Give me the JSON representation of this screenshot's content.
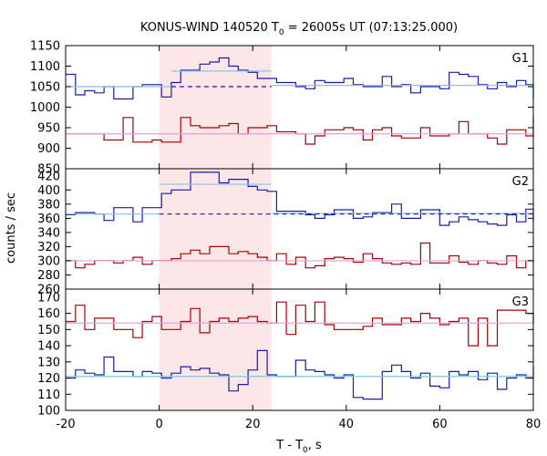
{
  "chart_data": {
    "type": "line",
    "title": "KONUS-WIND 140520 T",
    "title_sub": "0",
    "title_rest": " = 26005s UT (07:13:25.000)",
    "xlabel": "T - T",
    "xlabel_sub": "0",
    "xlabel_rest": ", s",
    "ylabel": "counts / sec",
    "xlim": [
      -20,
      80
    ],
    "x_ticks": [
      "-20",
      "0",
      "20",
      "40",
      "60",
      "80"
    ],
    "highlight_interval": [
      0,
      24
    ],
    "colors": {
      "blue": "#1a1aa6",
      "red": "#a60000",
      "cyan": "#7ec8e3",
      "pink": "#e8a0d8",
      "dashed": "#1a1aa6",
      "shade": "#fde6e8"
    },
    "panels": [
      {
        "name": "G1",
        "ylim": [
          850,
          1150
        ],
        "y_ticks": [
          "850",
          "900",
          "950",
          "1000",
          "1050",
          "1100",
          "1150"
        ],
        "step_x": [
          -20,
          -17.9,
          -15.9,
          -13.8,
          -11.8,
          -9.7,
          -7.7,
          -5.6,
          -3.6,
          -1.5,
          0.5,
          2.6,
          4.6,
          6.7,
          8.7,
          10.8,
          12.8,
          14.9,
          16.9,
          19.0,
          21.0,
          23.1,
          25.1,
          27.2,
          29.2,
          31.3,
          33.3,
          35.4,
          37.4,
          39.5,
          41.5,
          43.6,
          45.6,
          47.7,
          49.7,
          51.8,
          53.8,
          55.9,
          57.9,
          60.0,
          62.0,
          64.1,
          66.1,
          68.2,
          70.2,
          72.3,
          74.3,
          76.4,
          78.4,
          80.0
        ],
        "series": [
          {
            "color": "blue",
            "values": [
              1080,
              1030,
              1040,
              1035,
              1050,
              1020,
              1020,
              1050,
              1055,
              1055,
              1025,
              1060,
              1090,
              1090,
              1105,
              1110,
              1120,
              1100,
              1090,
              1085,
              1070,
              1070,
              1060,
              1060,
              1050,
              1045,
              1065,
              1060,
              1060,
              1070,
              1055,
              1050,
              1050,
              1075,
              1050,
              1055,
              1035,
              1050,
              1050,
              1045,
              1085,
              1080,
              1075,
              1055,
              1045,
              1060,
              1050,
              1065,
              1055,
              1020
            ]
          },
          {
            "color": "red",
            "values": [
              935,
              935,
              935,
              935,
              920,
              920,
              975,
              915,
              915,
              920,
              915,
              915,
              975,
              955,
              950,
              950,
              955,
              960,
              935,
              950,
              950,
              955,
              940,
              940,
              935,
              910,
              930,
              945,
              945,
              950,
              945,
              920,
              945,
              950,
              930,
              925,
              925,
              950,
              930,
              930,
              935,
              965,
              935,
              935,
              925,
              910,
              945,
              945,
              930,
              975
            ]
          },
          {
            "color": "cyan",
            "kind": "fit",
            "segments": [
              [
                -20,
                0,
                1050
              ],
              [
                0,
                2.6,
                1050
              ],
              [
                2.6,
                24,
                1088
              ],
              [
                24,
                80,
                1053
              ]
            ]
          },
          {
            "color": "dashed",
            "kind": "background",
            "segments": [
              [
                2.6,
                24,
                1050
              ]
            ]
          },
          {
            "color": "pink",
            "kind": "fit",
            "segments": [
              [
                -20,
                80,
                935
              ]
            ]
          }
        ]
      },
      {
        "name": "G2",
        "ylim": [
          260,
          430
        ],
        "y_ticks": [
          "260",
          "280",
          "300",
          "320",
          "340",
          "360",
          "380",
          "400",
          "420"
        ],
        "step_x": [
          -20,
          -17.9,
          -15.9,
          -13.8,
          -11.8,
          -9.7,
          -7.7,
          -5.6,
          -3.6,
          -1.5,
          0.5,
          2.6,
          4.6,
          6.7,
          8.7,
          10.8,
          12.8,
          14.9,
          16.9,
          19.0,
          21.0,
          23.1,
          25.1,
          27.2,
          29.2,
          31.3,
          33.3,
          35.4,
          37.4,
          39.5,
          41.5,
          43.6,
          45.6,
          47.7,
          49.7,
          51.8,
          53.8,
          55.9,
          57.9,
          60.0,
          62.0,
          64.1,
          66.1,
          68.2,
          70.2,
          72.3,
          74.3,
          76.4,
          78.4,
          80.0
        ],
        "series": [
          {
            "color": "blue",
            "values": [
              365,
              368,
              368,
              366,
              357,
              375,
              375,
              355,
              375,
              375,
              395,
              400,
              400,
              425,
              425,
              425,
              410,
              415,
              415,
              405,
              400,
              398,
              370,
              370,
              370,
              365,
              360,
              365,
              372,
              372,
              360,
              362,
              368,
              368,
              380,
              360,
              360,
              372,
              372,
              350,
              355,
              362,
              358,
              355,
              352,
              350,
              365,
              355,
              373,
              355
            ]
          },
          {
            "color": "red",
            "values": [
              300,
              290,
              295,
              300,
              300,
              297,
              300,
              305,
              295,
              300,
              300,
              303,
              310,
              315,
              310,
              320,
              320,
              310,
              313,
              310,
              305,
              300,
              310,
              295,
              305,
              290,
              293,
              303,
              305,
              303,
              298,
              310,
              303,
              297,
              295,
              297,
              295,
              325,
              297,
              297,
              307,
              298,
              295,
              300,
              297,
              295,
              307,
              290,
              300,
              297
            ]
          },
          {
            "color": "cyan",
            "kind": "fit",
            "segments": [
              [
                -20,
                0,
                366
              ],
              [
                0,
                24,
                408
              ],
              [
                24,
                80,
                367
              ]
            ]
          },
          {
            "color": "dashed",
            "kind": "background",
            "segments": [
              [
                0,
                80,
                366
              ]
            ]
          },
          {
            "color": "pink",
            "kind": "fit",
            "segments": [
              [
                -20,
                80,
                300
              ]
            ]
          }
        ]
      },
      {
        "name": "G3",
        "ylim": [
          100,
          175
        ],
        "y_ticks": [
          "100",
          "110",
          "120",
          "130",
          "140",
          "150",
          "160",
          "170"
        ],
        "step_x": [
          -20,
          -17.9,
          -15.9,
          -13.8,
          -11.8,
          -9.7,
          -7.7,
          -5.6,
          -3.6,
          -1.5,
          0.5,
          2.6,
          4.6,
          6.7,
          8.7,
          10.8,
          12.8,
          14.9,
          16.9,
          19.0,
          21.0,
          23.1,
          25.1,
          27.2,
          29.2,
          31.3,
          33.3,
          35.4,
          37.4,
          39.5,
          41.5,
          43.6,
          45.6,
          47.7,
          49.7,
          51.8,
          53.8,
          55.9,
          57.9,
          60.0,
          62.0,
          64.1,
          66.1,
          68.2,
          70.2,
          72.3,
          74.3,
          76.4,
          78.4,
          80.0
        ],
        "series": [
          {
            "color": "red",
            "values": [
              155,
              165,
              150,
              157,
              157,
              150,
              150,
              145,
              155,
              158,
              150,
              150,
              155,
              163,
              148,
              155,
              157,
              155,
              157,
              158,
              155,
              154,
              167,
              147,
              165,
              155,
              167,
              153,
              150,
              150,
              150,
              152,
              157,
              153,
              153,
              157,
              155,
              160,
              157,
              153,
              155,
              157,
              140,
              157,
              140,
              162,
              162,
              162,
              160,
              154
            ]
          },
          {
            "color": "blue",
            "values": [
              120,
              125,
              123,
              122,
              133,
              124,
              124,
              121,
              124,
              123,
              120,
              123,
              127,
              125,
              126,
              123,
              122,
              112,
              116,
              125,
              137,
              122,
              121,
              121,
              131,
              125,
              124,
              122,
              120,
              122,
              108,
              107,
              107,
              124,
              128,
              124,
              120,
              123,
              115,
              114,
              124,
              122,
              124,
              119,
              123,
              113,
              120,
              122,
              120,
              127
            ]
          },
          {
            "color": "pink",
            "kind": "fit",
            "segments": [
              [
                -20,
                80,
                154
              ]
            ]
          },
          {
            "color": "cyan",
            "kind": "fit",
            "segments": [
              [
                -20,
                80,
                121
              ]
            ]
          }
        ]
      }
    ]
  }
}
